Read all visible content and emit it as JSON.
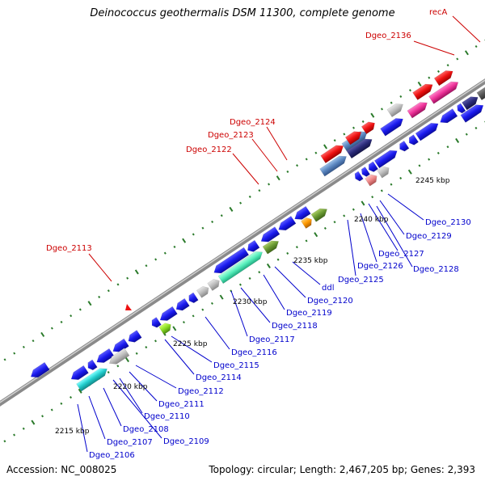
{
  "title": "Deinococcus geothermalis DSM 11300, complete genome",
  "footer": {
    "accession": "Accession: NC_008025",
    "summary": "Topology: circular; Length: 2,467,205 bp; Genes: 2,393"
  },
  "colors": {
    "backbone": "#8a8a8a",
    "gene_blue": "#1515ee",
    "gene_red": "#ee1111",
    "gene_grey": "#b8b8b8",
    "label_red": "#cc0000",
    "label_blue": "#0000cc",
    "tick_green": "#2a7a2a"
  },
  "ticks": [
    {
      "label": "2215 kbp"
    },
    {
      "label": "2220 kbp"
    },
    {
      "label": "2225 kbp"
    },
    {
      "label": "2230 kbp"
    },
    {
      "label": "2235 kbp"
    },
    {
      "label": "2240 kbp"
    },
    {
      "label": "2245 kbp"
    }
  ],
  "labels_top": [
    {
      "text": "recA"
    },
    {
      "text": "Dgeo_2136"
    },
    {
      "text": "Dgeo_2124"
    },
    {
      "text": "Dgeo_2123"
    },
    {
      "text": "Dgeo_2122"
    },
    {
      "text": "Dgeo_2113"
    }
  ],
  "labels_bottom": [
    {
      "text": "Dgeo_2130"
    },
    {
      "text": "Dgeo_2129"
    },
    {
      "text": "Dgeo_2127"
    },
    {
      "text": "Dgeo_2128"
    },
    {
      "text": "Dgeo_2126"
    },
    {
      "text": "Dgeo_2125"
    },
    {
      "text": "ddl"
    },
    {
      "text": "Dgeo_2120"
    },
    {
      "text": "Dgeo_2119"
    },
    {
      "text": "Dgeo_2118"
    },
    {
      "text": "Dgeo_2117"
    },
    {
      "text": "Dgeo_2116"
    },
    {
      "text": "Dgeo_2115"
    },
    {
      "text": "Dgeo_2114"
    },
    {
      "text": "Dgeo_2112"
    },
    {
      "text": "Dgeo_2111"
    },
    {
      "text": "Dgeo_2110"
    },
    {
      "text": "Dgeo_2109"
    },
    {
      "text": "Dgeo_2108"
    },
    {
      "text": "Dgeo_2107"
    },
    {
      "text": "Dgeo_2106"
    }
  ]
}
